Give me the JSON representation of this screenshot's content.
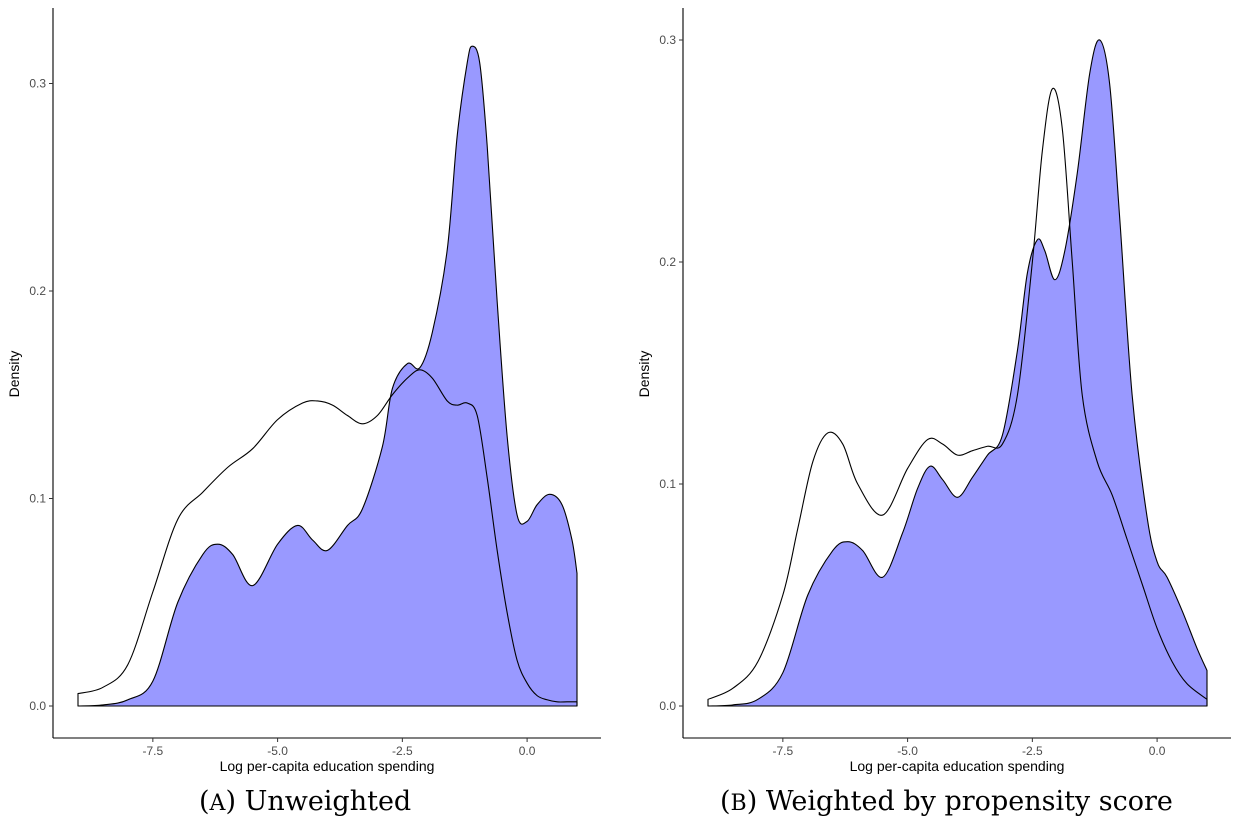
{
  "captions": [
    {
      "label_letter": "A",
      "label_rest": "Unweighted"
    },
    {
      "label_letter": "B",
      "label_rest": "Weighted by propensity score"
    }
  ],
  "chart_data": [
    {
      "type": "area",
      "title": "",
      "xlabel": "Log per-capita education spending",
      "ylabel": "Density",
      "xlim": [
        -9.0,
        1.0
      ],
      "ylim": [
        0,
        0.32
      ],
      "xticks": [
        -7.5,
        -5.0,
        -2.5,
        0.0
      ],
      "xtick_labels": [
        "-7.5",
        "-5.0",
        "-2.5",
        "0.0"
      ],
      "yticks": [
        0.0,
        0.1,
        0.2,
        0.3
      ],
      "ytick_labels": [
        "0.0",
        "0.1",
        "0.2",
        "0.3"
      ],
      "grid": false,
      "series": [
        {
          "style": "filled",
          "color": "#9999ff",
          "x": [
            -9.0,
            -8.5,
            -8.0,
            -7.5,
            -7.0,
            -6.5,
            -6.2,
            -5.9,
            -5.5,
            -5.0,
            -4.6,
            -4.3,
            -4.0,
            -3.6,
            -3.3,
            -2.9,
            -2.7,
            -2.4,
            -2.15,
            -1.9,
            -1.6,
            -1.4,
            -1.2,
            -1.1,
            -0.95,
            -0.8,
            -0.6,
            -0.4,
            -0.2,
            0.0,
            0.2,
            0.45,
            0.7,
            0.9,
            1.0
          ],
          "y": [
            0.0,
            0.0005,
            0.003,
            0.012,
            0.05,
            0.073,
            0.078,
            0.073,
            0.058,
            0.078,
            0.087,
            0.08,
            0.075,
            0.087,
            0.095,
            0.125,
            0.153,
            0.165,
            0.163,
            0.18,
            0.22,
            0.275,
            0.31,
            0.318,
            0.31,
            0.27,
            0.195,
            0.13,
            0.092,
            0.089,
            0.097,
            0.102,
            0.097,
            0.08,
            0.064
          ]
        },
        {
          "style": "outline",
          "color": "#000000",
          "x": [
            -9.0,
            -8.5,
            -8.0,
            -7.5,
            -7.0,
            -6.5,
            -6.0,
            -5.5,
            -5.0,
            -4.5,
            -4.2,
            -3.9,
            -3.6,
            -3.3,
            -3.0,
            -2.7,
            -2.4,
            -2.15,
            -1.9,
            -1.6,
            -1.4,
            -1.2,
            -1.0,
            -0.8,
            -0.6,
            -0.4,
            -0.2,
            0.0,
            0.2,
            0.4,
            0.6,
            0.8,
            1.0
          ],
          "y": [
            0.006,
            0.009,
            0.02,
            0.055,
            0.09,
            0.103,
            0.115,
            0.124,
            0.138,
            0.146,
            0.147,
            0.145,
            0.14,
            0.136,
            0.14,
            0.15,
            0.158,
            0.162,
            0.158,
            0.147,
            0.145,
            0.146,
            0.14,
            0.11,
            0.075,
            0.045,
            0.022,
            0.011,
            0.005,
            0.003,
            0.002,
            0.002,
            0.002
          ]
        }
      ]
    },
    {
      "type": "area",
      "title": "",
      "xlabel": "Log per-capita education spending",
      "ylabel": "Density",
      "xlim": [
        -9.0,
        1.0
      ],
      "ylim": [
        0,
        0.3
      ],
      "xticks": [
        -7.5,
        -5.0,
        -2.5,
        0.0
      ],
      "xtick_labels": [
        "-7.5",
        "-5.0",
        "-2.5",
        "0.0"
      ],
      "yticks": [
        0.0,
        0.1,
        0.2,
        0.3
      ],
      "ytick_labels": [
        "0.0",
        "0.1",
        "0.2",
        "0.3"
      ],
      "grid": false,
      "series": [
        {
          "style": "filled",
          "color": "#9999ff",
          "x": [
            -9.0,
            -8.5,
            -8.0,
            -7.5,
            -7.0,
            -6.5,
            -6.2,
            -5.9,
            -5.5,
            -5.1,
            -4.8,
            -4.55,
            -4.3,
            -4.0,
            -3.7,
            -3.4,
            -3.1,
            -2.8,
            -2.6,
            -2.4,
            -2.25,
            -2.05,
            -1.85,
            -1.6,
            -1.35,
            -1.15,
            -0.95,
            -0.75,
            -0.5,
            -0.2,
            0.0,
            0.2,
            0.5,
            0.8,
            1.0
          ],
          "y": [
            0.0,
            0.0005,
            0.003,
            0.015,
            0.05,
            0.07,
            0.074,
            0.07,
            0.058,
            0.078,
            0.098,
            0.108,
            0.102,
            0.094,
            0.103,
            0.113,
            0.122,
            0.16,
            0.195,
            0.21,
            0.205,
            0.192,
            0.205,
            0.24,
            0.285,
            0.3,
            0.28,
            0.22,
            0.14,
            0.085,
            0.065,
            0.058,
            0.043,
            0.026,
            0.016
          ]
        },
        {
          "style": "outline",
          "color": "#000000",
          "x": [
            -9.0,
            -8.5,
            -8.0,
            -7.5,
            -7.2,
            -6.9,
            -6.6,
            -6.3,
            -6.0,
            -5.5,
            -5.0,
            -4.6,
            -4.3,
            -4.0,
            -3.7,
            -3.4,
            -3.1,
            -2.8,
            -2.5,
            -2.3,
            -2.1,
            -1.9,
            -1.7,
            -1.5,
            -1.2,
            -0.9,
            -0.6,
            -0.3,
            0.0,
            0.3,
            0.6,
            1.0
          ],
          "y": [
            0.003,
            0.008,
            0.02,
            0.05,
            0.08,
            0.11,
            0.123,
            0.118,
            0.1,
            0.086,
            0.107,
            0.12,
            0.118,
            0.113,
            0.115,
            0.117,
            0.118,
            0.14,
            0.2,
            0.25,
            0.278,
            0.26,
            0.2,
            0.14,
            0.11,
            0.095,
            0.075,
            0.055,
            0.035,
            0.02,
            0.01,
            0.003
          ]
        }
      ]
    }
  ]
}
